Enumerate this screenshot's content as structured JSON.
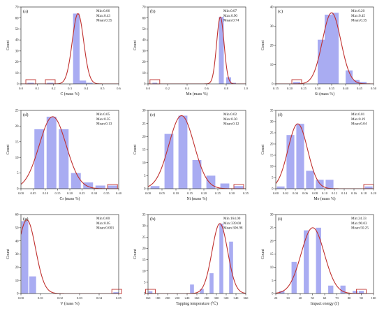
{
  "figure": {
    "colors": {
      "bar": "#a9acf2",
      "curve": "#c0302e",
      "marker": "#c0302e",
      "axis": "#333333"
    }
  },
  "chart_data": [
    {
      "type": "bar",
      "panel": "(a)",
      "xlabel": "C (mass %)",
      "ylabel": "Count",
      "stats": [
        "Min:0.06",
        "Max:0.43",
        "Mean:0.35"
      ],
      "xlim": [
        0.0,
        0.6
      ],
      "ylim": [
        0,
        70
      ],
      "xticks": [
        0.0,
        0.1,
        0.2,
        0.3,
        0.4,
        0.5,
        0.6
      ],
      "xtick_labels": [
        "0.0",
        "0.1",
        "0.2",
        "0.3",
        "0.4",
        "0.5",
        "0.6"
      ],
      "yticks": [
        0,
        10,
        20,
        30,
        40,
        50,
        60,
        70
      ],
      "bin_width": 0.04,
      "bins": [
        0.06,
        0.18,
        0.34,
        0.38,
        0.42
      ],
      "values": [
        1,
        1,
        64,
        3,
        1
      ],
      "fit": {
        "mean": 0.35,
        "sd": 0.035,
        "peak": 64
      },
      "marked_bins": [
        0.06,
        0.18
      ]
    },
    {
      "type": "bar",
      "panel": "(b)",
      "xlabel": "Mn (mass %)",
      "ylabel": "Count",
      "stats": [
        "Min:0.07",
        "Max:0.90",
        "Mean:0.74"
      ],
      "xlim": [
        0.0,
        1.0
      ],
      "ylim": [
        0,
        70
      ],
      "xticks": [
        0.0,
        0.2,
        0.4,
        0.6,
        0.8,
        1.0
      ],
      "xtick_labels": [
        "0.0",
        "0.2",
        "0.4",
        "0.6",
        "0.8",
        "1.0"
      ],
      "yticks": [
        0,
        10,
        20,
        30,
        40,
        50,
        60,
        70
      ],
      "bin_width": 0.05,
      "bins": [
        0.07,
        0.75,
        0.825,
        0.875
      ],
      "values": [
        1,
        61,
        6,
        1
      ],
      "fit": {
        "mean": 0.74,
        "sd": 0.038,
        "peak": 61
      },
      "marked_bins": [
        0.07
      ]
    },
    {
      "type": "bar",
      "panel": "(c)",
      "xlabel": "Si (mass %)",
      "ylabel": "Count",
      "stats": [
        "Min:0.20",
        "Max:0.45",
        "Mean:0.35"
      ],
      "xlim": [
        0.15,
        0.5
      ],
      "ylim": [
        0,
        40
      ],
      "xticks": [
        0.15,
        0.2,
        0.25,
        0.3,
        0.35,
        0.4,
        0.45,
        0.5
      ],
      "xtick_labels": [
        "0.15",
        "0.20",
        "0.25",
        "0.30",
        "0.35",
        "0.40",
        "0.45",
        "0.50"
      ],
      "yticks": [
        0,
        10,
        20,
        30,
        40
      ],
      "bin_width": 0.025,
      "bins": [
        0.225,
        0.3125,
        0.3375,
        0.3625,
        0.4125,
        0.4375,
        0.4625
      ],
      "values": [
        1,
        23,
        36,
        37,
        7,
        2,
        1
      ],
      "fit": {
        "mean": 0.35,
        "sd": 0.033,
        "peak": 37
      },
      "marked_bins": [
        0.225
      ]
    },
    {
      "type": "bar",
      "panel": "(d)",
      "xlabel": "Cr (mass %)",
      "ylabel": "Count",
      "stats": [
        "Min:0.05",
        "Max:0.35",
        "Mean:0.13"
      ],
      "xlim": [
        0.0,
        0.4
      ],
      "ylim": [
        0,
        25
      ],
      "xticks": [
        0.0,
        0.05,
        0.1,
        0.15,
        0.2,
        0.25,
        0.3,
        0.35,
        0.4
      ],
      "xtick_labels": [
        "0.00",
        "0.05",
        "0.10",
        "0.15",
        "0.20",
        "0.25",
        "0.30",
        "0.35",
        "0.40"
      ],
      "yticks": [
        0,
        5,
        10,
        15,
        20,
        25
      ],
      "bin_width": 0.04,
      "bins": [
        0.075,
        0.125,
        0.175,
        0.225,
        0.275,
        0.325,
        0.375
      ],
      "values": [
        19,
        23,
        19,
        5,
        2,
        1,
        1
      ],
      "fit": {
        "mean": 0.13,
        "sd": 0.055,
        "peak": 23
      },
      "marked_bins": [
        0.375
      ]
    },
    {
      "type": "bar",
      "panel": "(e)",
      "xlabel": "Ni (mass %)",
      "ylabel": "Count",
      "stats": [
        "Min:0.02",
        "Max:0.30",
        "Mean:0.12"
      ],
      "xlim": [
        0.0,
        0.35
      ],
      "ylim": [
        0,
        30
      ],
      "xticks": [
        0.0,
        0.05,
        0.1,
        0.15,
        0.2,
        0.25,
        0.3,
        0.35
      ],
      "xtick_labels": [
        "0.00",
        "0.05",
        "0.10",
        "0.15",
        "0.20",
        "0.25",
        "0.30",
        "0.35"
      ],
      "yticks": [
        0,
        5,
        10,
        15,
        20,
        25,
        30
      ],
      "bin_width": 0.032,
      "bins": [
        0.025,
        0.075,
        0.125,
        0.175,
        0.225,
        0.275,
        0.325
      ],
      "values": [
        1,
        21,
        28,
        11,
        5,
        2,
        1
      ],
      "fit": {
        "mean": 0.12,
        "sd": 0.045,
        "peak": 28
      },
      "marked_bins": [
        0.325
      ]
    },
    {
      "type": "bar",
      "panel": "(f)",
      "xlabel": "Mo (mass %)",
      "ylabel": "Count",
      "stats": [
        "Min:0.01",
        "Max:0.19",
        "Mean:0.04"
      ],
      "xlim": [
        0.0,
        0.2
      ],
      "ylim": [
        0,
        35
      ],
      "xticks": [
        0.0,
        0.02,
        0.04,
        0.06,
        0.08,
        0.1,
        0.12,
        0.14,
        0.16,
        0.18,
        0.2
      ],
      "xtick_labels": [
        "0.00",
        "0.02",
        "0.04",
        "0.06",
        "0.08",
        "0.10",
        "0.12",
        "0.14",
        "0.16",
        "0.18",
        "0.20"
      ],
      "yticks": [
        0,
        5,
        10,
        15,
        20,
        25,
        30,
        35
      ],
      "bin_width": 0.016,
      "bins": [
        0.01,
        0.03,
        0.05,
        0.07,
        0.09,
        0.11,
        0.19
      ],
      "values": [
        1,
        24,
        29,
        8,
        4,
        4,
        1
      ],
      "fit": {
        "mean": 0.045,
        "sd": 0.02,
        "peak": 29
      },
      "marked_bins": [
        0.19
      ]
    },
    {
      "type": "bar",
      "panel": "(g)",
      "xlabel": "V (mass %)",
      "ylabel": "Count",
      "stats": [
        "Min:0.00",
        "Max:0.05",
        "Mean:0.003"
      ],
      "xlim": [
        0.0,
        0.05
      ],
      "ylim": [
        0,
        60
      ],
      "xticks": [
        0.0,
        0.01,
        0.02,
        0.03,
        0.04,
        0.05
      ],
      "xtick_labels": [
        "0.00",
        "0.01",
        "0.02",
        "0.03",
        "0.04",
        "0.05"
      ],
      "yticks": [
        0,
        10,
        20,
        30,
        40,
        50,
        60
      ],
      "bin_width": 0.0035,
      "bins": [
        0.002,
        0.006,
        0.049
      ],
      "values": [
        55,
        13,
        1
      ],
      "fit": {
        "mean": 0.003,
        "sd": 0.0045,
        "peak": 56
      },
      "marked_bins": [
        0.049
      ]
    },
    {
      "type": "bar",
      "panel": "(h)",
      "xlabel": "Tapping temperature (℃)",
      "ylabel": "Count",
      "stats": [
        "Min:164.00",
        "Max:339.00",
        "Mean:306.98"
      ],
      "xlim": [
        160,
        360
      ],
      "ylim": [
        0,
        35
      ],
      "xticks": [
        160,
        180,
        200,
        220,
        240,
        260,
        280,
        300,
        320,
        340,
        360
      ],
      "xtick_labels": [
        "160",
        "180",
        "200",
        "220",
        "240",
        "260",
        "280",
        "300",
        "320",
        "340",
        "360"
      ],
      "yticks": [
        0,
        5,
        10,
        15,
        20,
        25,
        30,
        35
      ],
      "bin_width": 8,
      "bins": [
        165,
        250,
        270,
        290,
        310,
        330
      ],
      "values": [
        1,
        4,
        2,
        9,
        31,
        23
      ],
      "fit": {
        "mean": 307,
        "sd": 16,
        "peak": 31
      },
      "marked_bins": [
        165
      ]
    },
    {
      "type": "bar",
      "panel": "(i)",
      "xlabel": "Impact energy (J)",
      "ylabel": "Count",
      "stats": [
        "Min:24.33",
        "Max:90.03",
        "Mean:50.25"
      ],
      "xlim": [
        20,
        100
      ],
      "ylim": [
        0,
        30
      ],
      "xticks": [
        20,
        30,
        40,
        50,
        60,
        70,
        80,
        90,
        100
      ],
      "xtick_labels": [
        "20",
        "30",
        "40",
        "50",
        "60",
        "70",
        "80",
        "90",
        "100"
      ],
      "yticks": [
        0,
        5,
        10,
        15,
        20,
        25,
        30
      ],
      "bin_width": 4.2,
      "bins": [
        25,
        35,
        45,
        55,
        65,
        75,
        85,
        90
      ],
      "values": [
        1,
        12,
        24,
        25,
        3,
        3,
        1,
        1
      ],
      "fit": {
        "mean": 50.25,
        "sd": 9.5,
        "peak": 25
      },
      "marked_bins": [
        90
      ]
    }
  ]
}
